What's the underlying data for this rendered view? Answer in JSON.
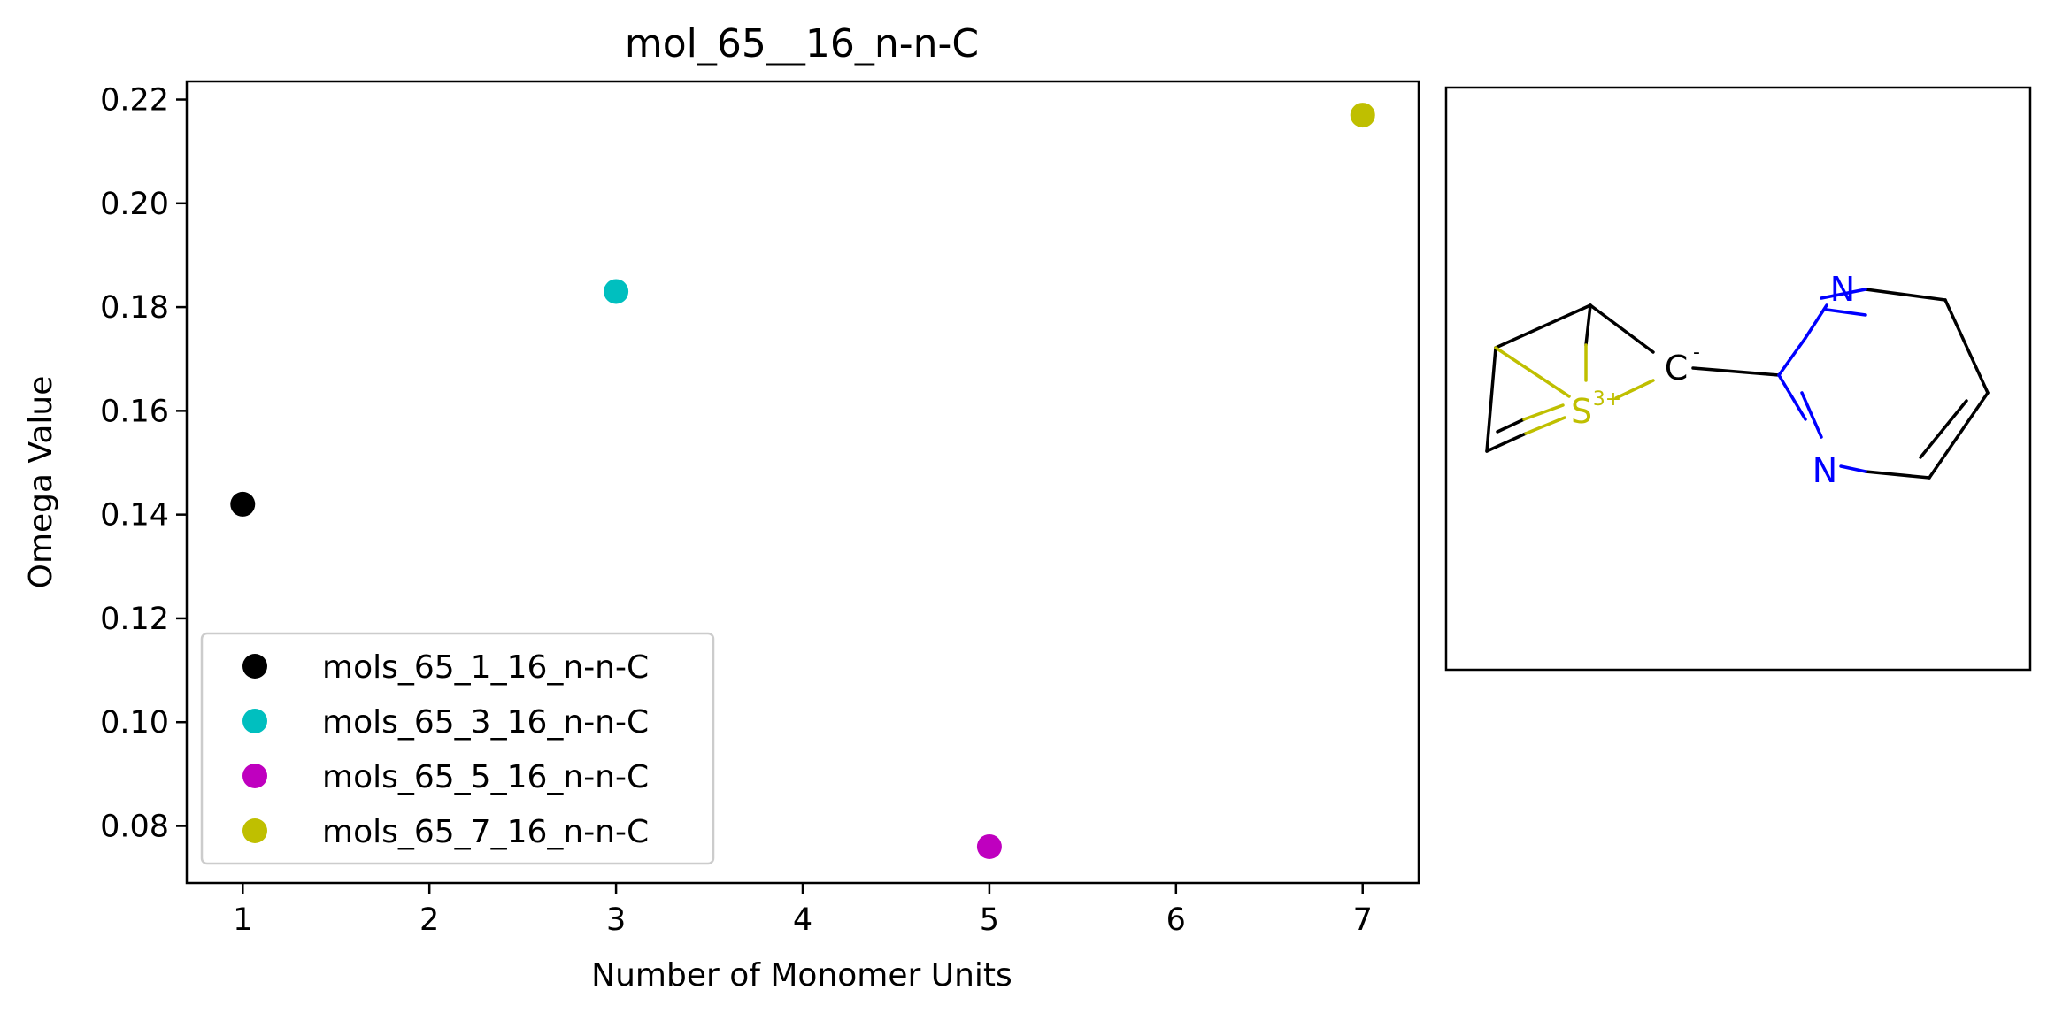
{
  "chart_data": {
    "type": "scatter",
    "title": "mol_65__16_n-n-C",
    "xlabel": "Number of Monomer Units",
    "ylabel": "Omega Value",
    "xlim": [
      0.7,
      7.3
    ],
    "ylim": [
      0.069,
      0.2235
    ],
    "xticks": [
      1,
      2,
      3,
      4,
      5,
      6,
      7
    ],
    "yticks": [
      0.08,
      0.1,
      0.12,
      0.14,
      0.16,
      0.18,
      0.2,
      0.22
    ],
    "ytick_labels": [
      "0.08",
      "0.10",
      "0.12",
      "0.14",
      "0.16",
      "0.18",
      "0.20",
      "0.22"
    ],
    "grid": false,
    "legend_position": "lower-left",
    "series": [
      {
        "name": "mols_65_1_16_n-n-C",
        "color": "#000000",
        "points": [
          {
            "x": 1,
            "y": 0.142
          }
        ]
      },
      {
        "name": "mols_65_3_16_n-n-C",
        "color": "#00bfbf",
        "points": [
          {
            "x": 3,
            "y": 0.183
          }
        ]
      },
      {
        "name": "mols_65_5_16_n-n-C",
        "color": "#bf00bf",
        "points": [
          {
            "x": 5,
            "y": 0.076
          }
        ]
      },
      {
        "name": "mols_65_7_16_n-n-C",
        "color": "#bfbf00",
        "points": [
          {
            "x": 7,
            "y": 0.217
          }
        ]
      }
    ]
  },
  "molecule": {
    "atoms": {
      "n_top": "N",
      "n_bottom": "N",
      "c_anion": "C",
      "c_charge": "-",
      "s_cation": "S",
      "s_charge": "3+"
    },
    "colors": {
      "bond": "#000000",
      "nitrogen": "#0000ff",
      "sulfur": "#bfbf00"
    }
  }
}
